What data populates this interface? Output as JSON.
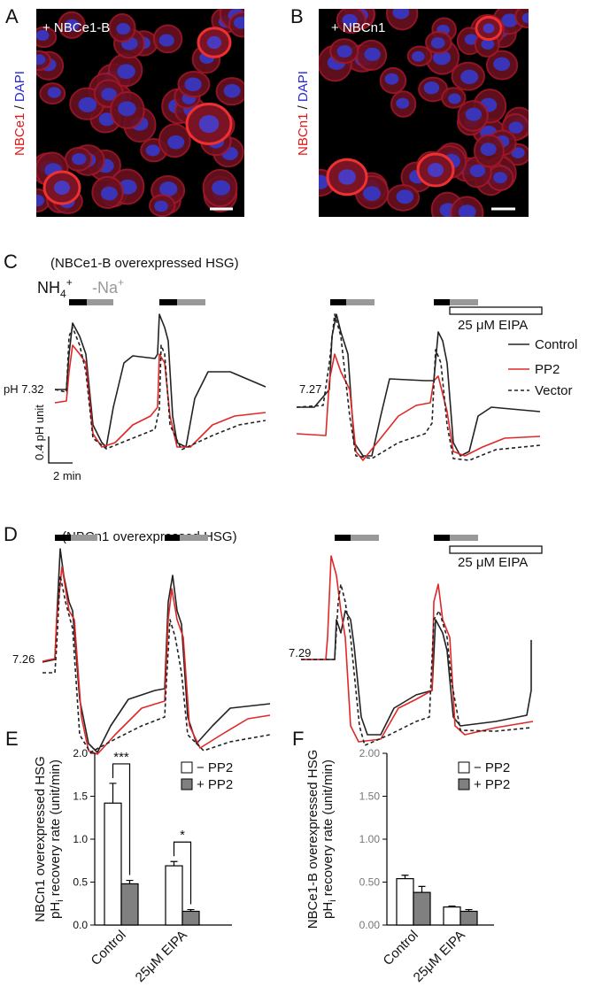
{
  "panels": {
    "A": {
      "label": "A",
      "overlay": "+ NBCe1-B",
      "stain": [
        "NBCe1",
        " / ",
        "DAPI"
      ]
    },
    "B": {
      "label": "B",
      "overlay": "+ NBCn1",
      "stain": [
        "NBCn1",
        " / ",
        "DAPI"
      ]
    },
    "C": {
      "label": "C",
      "title": "(NBCe1-B overexpressed HSG)",
      "nh4": [
        "NH",
        "4",
        "+"
      ],
      "na": [
        "-Na",
        "+"
      ],
      "eipa": "25 μM EIPA",
      "legend": [
        "Control",
        "PP2",
        "Vector"
      ],
      "ph_left": "pH 7.32",
      "ph_right": "7.27",
      "scale_y": "0.4 pH unit",
      "scale_x": "2 min"
    },
    "D": {
      "label": "D",
      "title": "(NBCn1 overexpressed HSG)",
      "eipa": "25 μM EIPA",
      "ph_left": "7.26",
      "ph_right": "7.29"
    }
  },
  "chart_data": [
    {
      "type": "bar",
      "label": "E",
      "ylabel_top": "NBCn1 overexpressed HSG",
      "ylabel_bottom": [
        "pH",
        "i",
        " recovery rate (unit/min)"
      ],
      "categories": [
        "Control",
        "25μM EIPA"
      ],
      "series": [
        {
          "name": "− PP2",
          "color": "#ffffff",
          "values": [
            1.42,
            0.69
          ],
          "errors": [
            0.23,
            0.05
          ]
        },
        {
          "name": "+ PP2",
          "color": "#808080",
          "values": [
            0.48,
            0.16
          ],
          "errors": [
            0.04,
            0.02
          ]
        }
      ],
      "ylim": [
        0,
        2
      ],
      "yticks": [
        {
          "value": 0,
          "label": "0.0"
        },
        0.5,
        {
          "value": 1,
          "label": "1.0"
        },
        1.5,
        {
          "value": 2,
          "label": "2.0"
        }
      ],
      "significance": [
        "***",
        "*"
      ]
    },
    {
      "type": "bar",
      "label": "F",
      "ylabel_top": "NBCe1-B overexpressed HSG",
      "ylabel_bottom": [
        "pH",
        "i",
        " recovery rate (unit/min)"
      ],
      "categories": [
        "Control",
        "25μM EIPA"
      ],
      "series": [
        {
          "name": "− PP2",
          "color": "#ffffff",
          "values": [
            0.54,
            0.21
          ],
          "errors": [
            0.04,
            0.01
          ]
        },
        {
          "name": "+ PP2",
          "color": "#808080",
          "values": [
            0.38,
            0.16
          ],
          "errors": [
            0.07,
            0.02
          ]
        }
      ],
      "ylim": [
        0,
        2
      ],
      "yticks": [
        {
          "value": 0,
          "label": "0.00"
        },
        {
          "value": 0.5,
          "label": "0.50"
        },
        {
          "value": 1,
          "label": "1.00"
        },
        {
          "value": 1.5,
          "label": "1.50"
        },
        {
          "value": 2,
          "label": "2.00"
        }
      ]
    }
  ]
}
